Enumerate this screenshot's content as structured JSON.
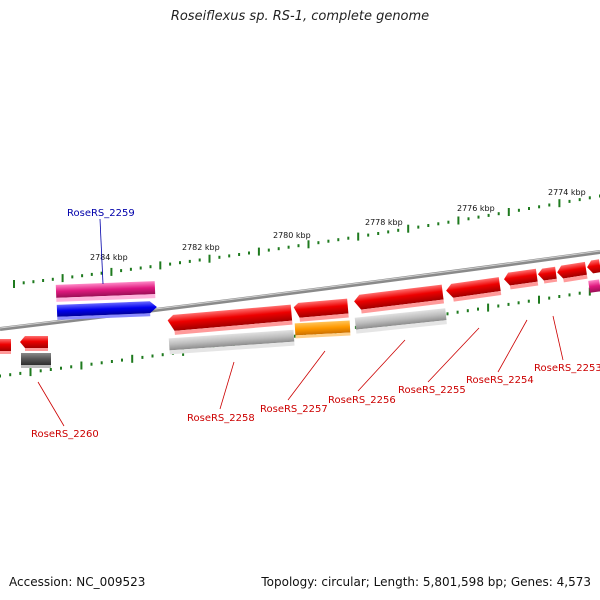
{
  "title": "Roseiflexus sp. RS-1, complete genome",
  "footer": {
    "accession": "Accession: NC_009523",
    "stats": "Topology: circular; Length: 5,801,598 bp; Genes: 4,573"
  },
  "colors": {
    "backbone": "#8a8a8a",
    "tick": "#1e7a1e",
    "label_red": "#cc0000",
    "label_blue": "#0000aa",
    "gene_red": "#e00000",
    "gene_gray": "#a8a8a8",
    "gene_dark": "#505050",
    "gene_orange": "#ff9900",
    "gene_pink": "#e0197f",
    "gene_blue": "#0000ee"
  },
  "ruler": {
    "labels": [
      "2784 kbp",
      "2782 kbp",
      "2780 kbp",
      "2778 kbp",
      "2776 kbp",
      "2774 kbp"
    ]
  },
  "genes": [
    {
      "id": "RoseRS_2259",
      "label": "RoseRS_2259",
      "label_color": "blue"
    },
    {
      "id": "RoseRS_2260",
      "label": "RoseRS_2260",
      "label_color": "red"
    },
    {
      "id": "RoseRS_2258",
      "label": "RoseRS_2258",
      "label_color": "red"
    },
    {
      "id": "RoseRS_2257",
      "label": "RoseRS_2257",
      "label_color": "red"
    },
    {
      "id": "RoseRS_2256",
      "label": "RoseRS_2256",
      "label_color": "red"
    },
    {
      "id": "RoseRS_2255",
      "label": "RoseRS_2255",
      "label_color": "red"
    },
    {
      "id": "RoseRS_2254",
      "label": "RoseRS_2254",
      "label_color": "red"
    },
    {
      "id": "RoseRS_2253",
      "label": "RoseRS_2253",
      "label_color": "red"
    }
  ]
}
